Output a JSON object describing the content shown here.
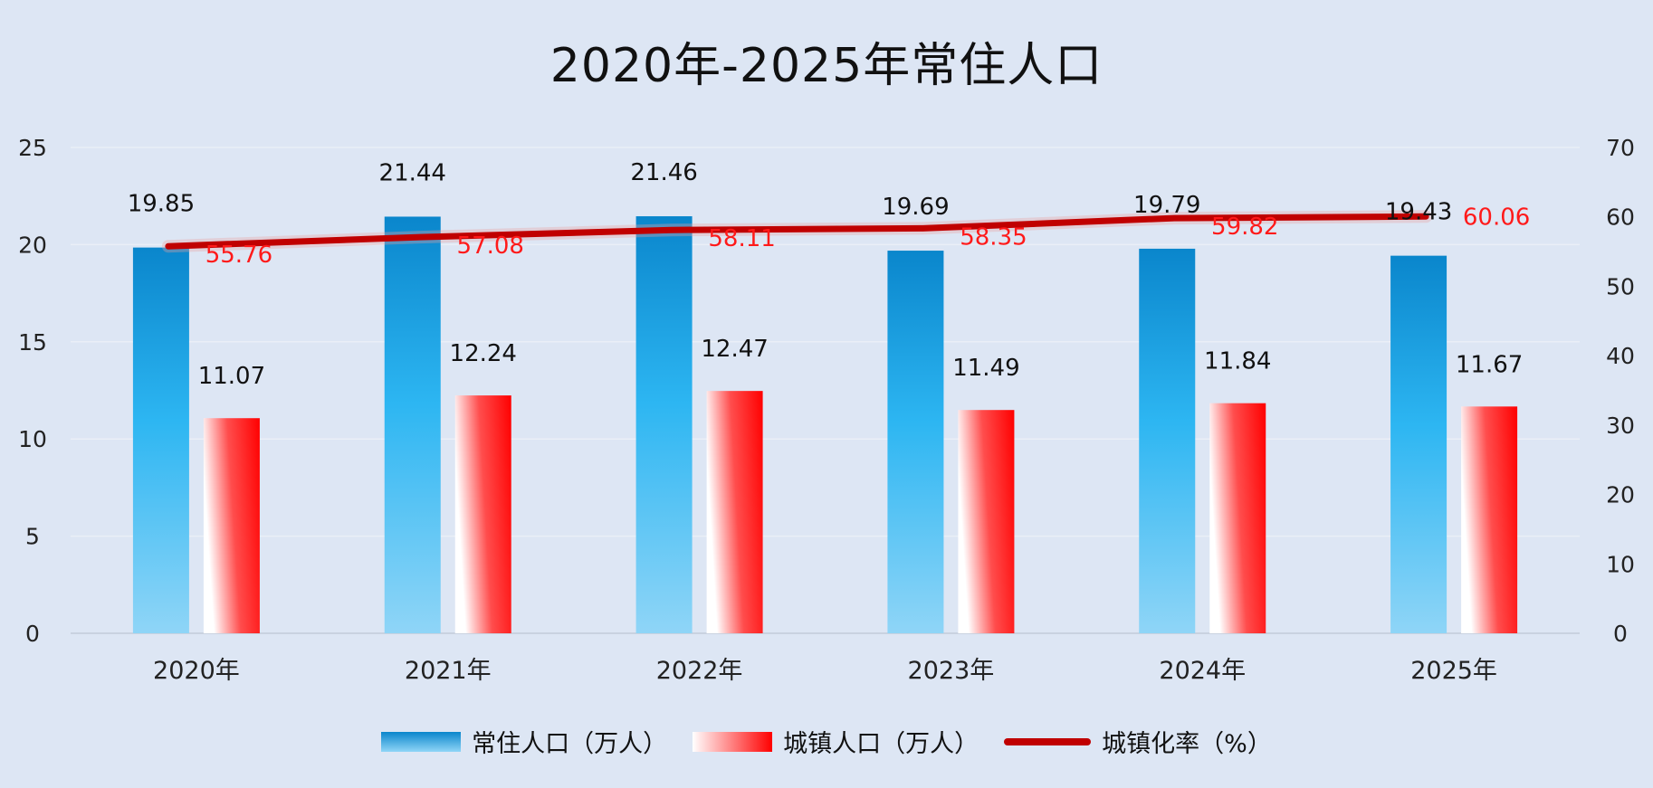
{
  "chart_data": {
    "type": "bar",
    "title": "2020年-2025年常住人口",
    "categories": [
      "2020年",
      "2021年",
      "2022年",
      "2023年",
      "2024年",
      "2025年"
    ],
    "series": [
      {
        "name": "常住人口（万人）",
        "type": "bar",
        "axis": "left",
        "color": "#1aa3e6",
        "values": [
          19.85,
          21.44,
          21.46,
          19.69,
          19.79,
          19.43
        ],
        "labels": [
          "19.85",
          "21.44",
          "21.46",
          "19.69",
          "19.79",
          "19.43"
        ]
      },
      {
        "name": "城镇人口（万人）",
        "type": "bar",
        "axis": "left",
        "color": "#ff0000",
        "values": [
          11.07,
          12.24,
          12.47,
          11.49,
          11.84,
          11.67
        ],
        "labels": [
          "11.07",
          "12.24",
          "12.47",
          "11.49",
          "11.84",
          "11.67"
        ]
      },
      {
        "name": "城镇化率（%）",
        "type": "line",
        "axis": "right",
        "color": "#c00000",
        "values": [
          55.76,
          57.08,
          58.11,
          58.35,
          59.82,
          60.06
        ],
        "labels": [
          "55.76",
          "57.08",
          "58.11",
          "58.35",
          "59.82",
          "60.06"
        ]
      }
    ],
    "y_left": {
      "min": 0,
      "max": 25,
      "ticks": [
        0,
        5,
        10,
        15,
        20,
        25
      ]
    },
    "y_right": {
      "min": 0,
      "max": 70,
      "ticks": [
        0,
        10,
        20,
        30,
        40,
        50,
        60,
        70
      ]
    },
    "grid": true,
    "legend_position": "bottom"
  }
}
